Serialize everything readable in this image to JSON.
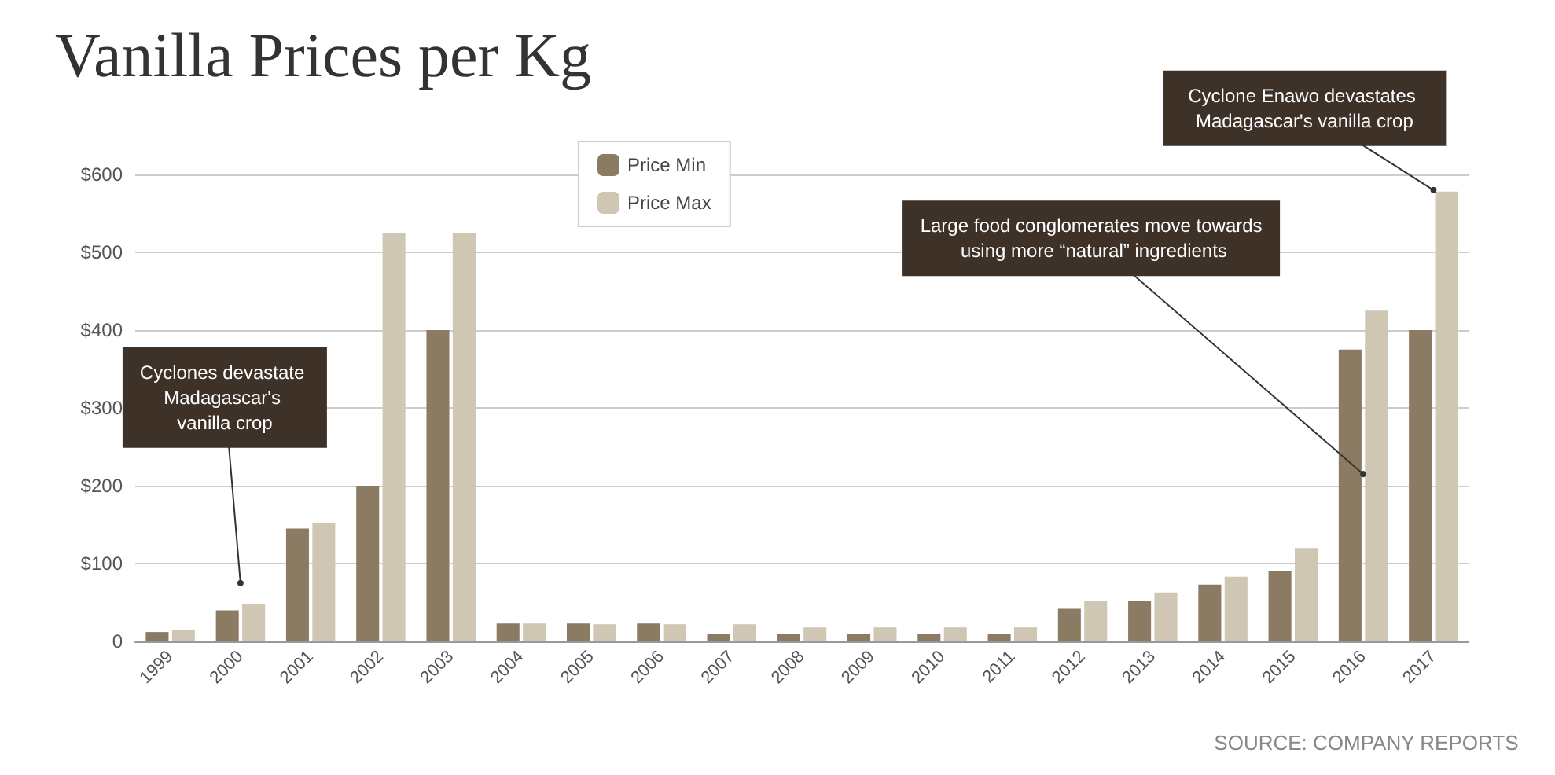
{
  "chart_data": {
    "type": "bar",
    "title": "Vanilla Prices per Kg",
    "categories": [
      "1999",
      "2000",
      "2001",
      "2002",
      "2003",
      "2004",
      "2005",
      "2006",
      "2007",
      "2008",
      "2009",
      "2010",
      "2011",
      "2012",
      "2013",
      "2014",
      "2015",
      "2016",
      "2017"
    ],
    "series": [
      {
        "name": "Price Min",
        "color": "#8c7b63",
        "values": [
          12,
          40,
          145,
          200,
          400,
          23,
          23,
          23,
          10,
          10,
          10,
          10,
          10,
          42,
          52,
          73,
          90,
          375,
          400
        ]
      },
      {
        "name": "Price Max",
        "color": "#cfc6b3",
        "values": [
          15,
          48,
          152,
          525,
          525,
          23,
          22,
          22,
          22,
          18,
          18,
          18,
          18,
          52,
          63,
          83,
          120,
          425,
          578
        ]
      }
    ],
    "ylim": [
      0,
      600
    ],
    "yticks": [
      {
        "value": 0,
        "label": "0"
      },
      {
        "value": 100,
        "label": "$100"
      },
      {
        "value": 200,
        "label": "$200"
      },
      {
        "value": 300,
        "label": "$300"
      },
      {
        "value": 400,
        "label": "$400"
      },
      {
        "value": 500,
        "label": "$500"
      },
      {
        "value": 600,
        "label": "$600"
      }
    ],
    "grid": "y",
    "legend": "top",
    "annotations": [
      {
        "text": "Cyclones devastate Madagascar's vanilla crop",
        "x": "2000",
        "y": 75
      },
      {
        "text": "Large food conglomerates move towards using more “natural” ingredients",
        "x": "2016",
        "y": 215
      },
      {
        "text": "Cyclone Enawo devastates Madagascar's vanilla crop",
        "x": "2017",
        "y": 580
      },
      "SOURCE: COMPANY REPORTS"
    ]
  }
}
